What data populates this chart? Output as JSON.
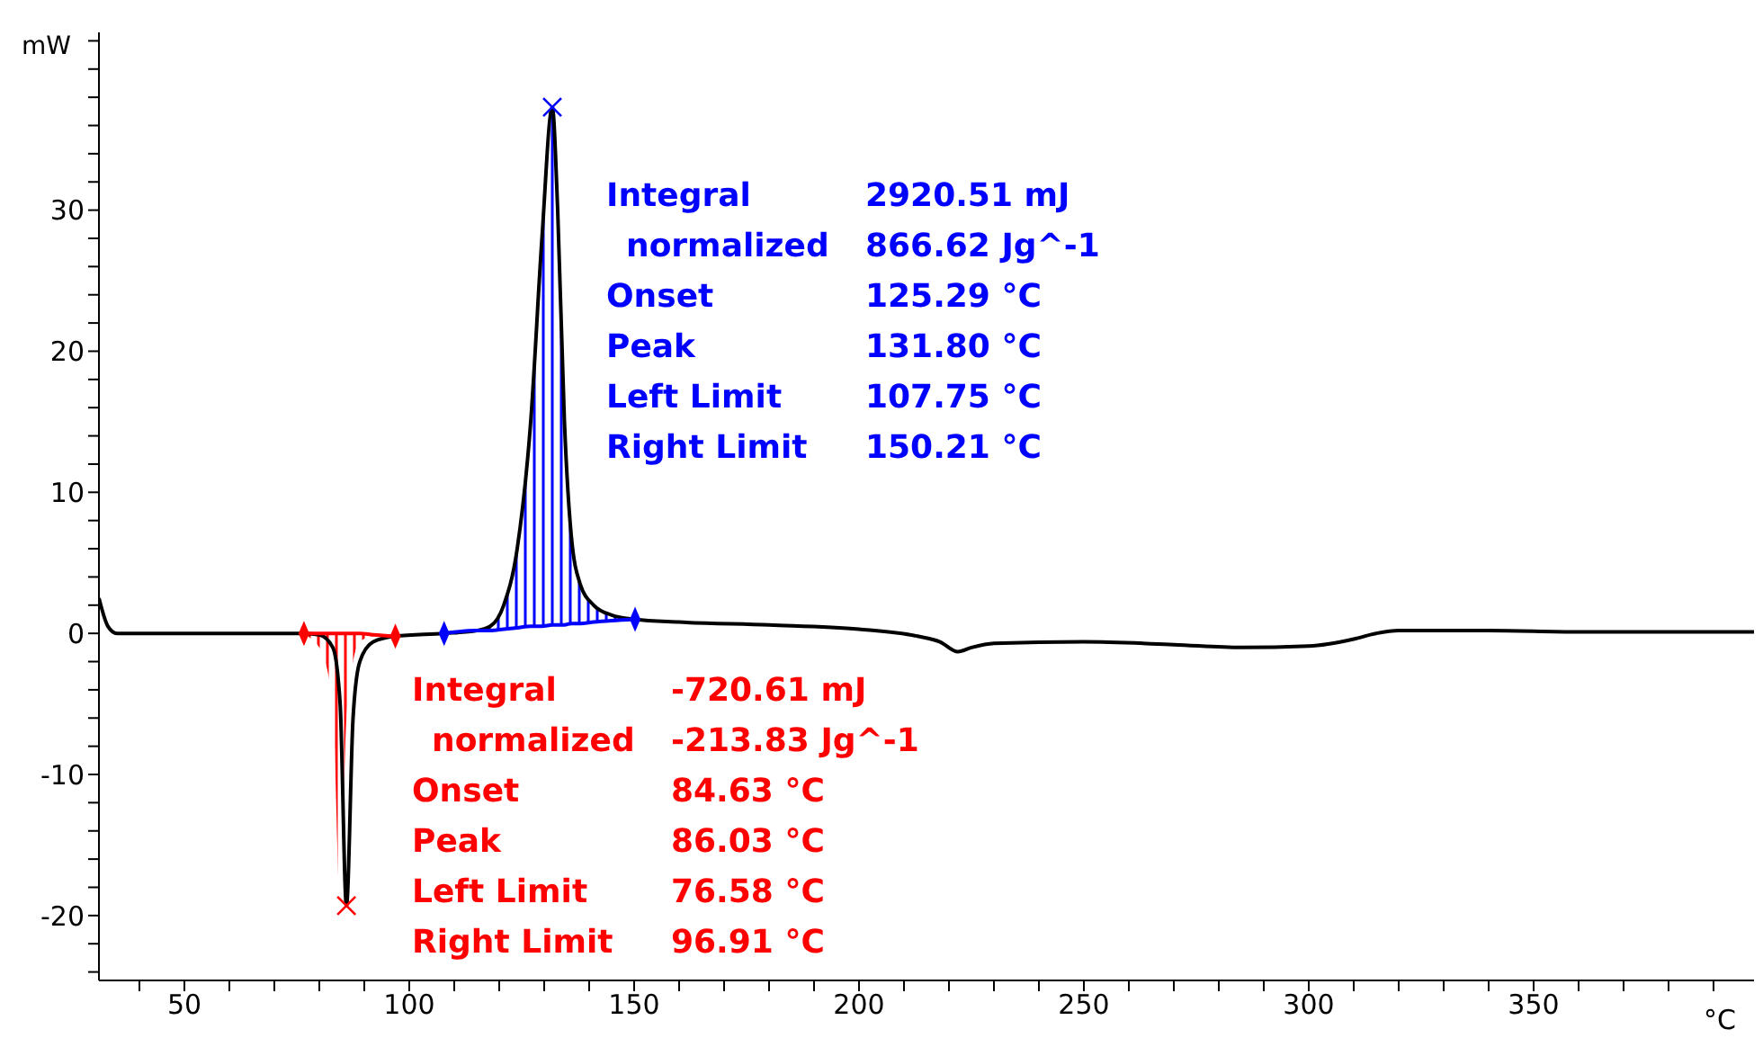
{
  "chart_data": {
    "type": "line",
    "ylabel": "mW",
    "xlabel": "°C",
    "xlim": [
      31,
      399
    ],
    "ylim": [
      -24.6,
      42.6
    ],
    "xticks": [
      {
        "value": 40,
        "label": null
      },
      50,
      {
        "value": 60,
        "label": null
      },
      {
        "value": 70,
        "label": null
      },
      {
        "value": 80,
        "label": null
      },
      {
        "value": 90,
        "label": null
      },
      100,
      {
        "value": 110,
        "label": null
      },
      {
        "value": 120,
        "label": null
      },
      {
        "value": 130,
        "label": null
      },
      {
        "value": 140,
        "label": null
      },
      150,
      {
        "value": 160,
        "label": null
      },
      {
        "value": 170,
        "label": null
      },
      {
        "value": 180,
        "label": null
      },
      {
        "value": 190,
        "label": null
      },
      200,
      {
        "value": 210,
        "label": null
      },
      {
        "value": 220,
        "label": null
      },
      {
        "value": 230,
        "label": null
      },
      {
        "value": 240,
        "label": null
      },
      250,
      {
        "value": 260,
        "label": null
      },
      {
        "value": 270,
        "label": null
      },
      {
        "value": 280,
        "label": null
      },
      {
        "value": 290,
        "label": null
      },
      300,
      {
        "value": 310,
        "label": null
      },
      {
        "value": 320,
        "label": null
      },
      {
        "value": 330,
        "label": null
      },
      {
        "value": 340,
        "label": null
      },
      350,
      {
        "value": 360,
        "label": null
      },
      {
        "value": 370,
        "label": null
      },
      {
        "value": 380,
        "label": null
      },
      {
        "value": 390,
        "label": null
      }
    ],
    "yticks": [
      {
        "value": -24,
        "label": null
      },
      {
        "value": -22,
        "label": null
      },
      -20,
      {
        "value": -18,
        "label": null
      },
      {
        "value": -16,
        "label": null
      },
      {
        "value": -14,
        "label": null
      },
      {
        "value": -12,
        "label": null
      },
      -10,
      {
        "value": -8,
        "label": null
      },
      {
        "value": -6,
        "label": null
      },
      {
        "value": -4,
        "label": null
      },
      {
        "value": -2,
        "label": null
      },
      0,
      {
        "value": 2,
        "label": null
      },
      {
        "value": 4,
        "label": null
      },
      {
        "value": 6,
        "label": null
      },
      {
        "value": 8,
        "label": null
      },
      10,
      {
        "value": 12,
        "label": null
      },
      {
        "value": 14,
        "label": null
      },
      {
        "value": 16,
        "label": null
      },
      {
        "value": 18,
        "label": null
      },
      20,
      {
        "value": 22,
        "label": null
      },
      {
        "value": 24,
        "label": null
      },
      {
        "value": 26,
        "label": null
      },
      {
        "value": 28,
        "label": null
      },
      30,
      {
        "value": 32,
        "label": null
      },
      {
        "value": 34,
        "label": null
      },
      {
        "value": 36,
        "label": null
      },
      {
        "value": 38,
        "label": null
      },
      {
        "value": 40,
        "label": null
      },
      {
        "value": 42,
        "label": null
      }
    ],
    "series": [
      {
        "color": "#000000",
        "x": [
          31,
          33,
          35,
          50,
          76.58,
          80,
          83,
          84.63,
          86.03,
          87.5,
          89,
          92,
          96.91,
          107.75,
          115,
          118,
          121,
          124,
          127,
          129.5,
          131.8,
          133,
          134.5,
          136,
          138,
          141,
          145,
          150.21,
          160,
          180,
          200,
          213,
          218,
          222,
          225,
          230,
          250,
          270,
          285,
          300,
          310,
          315,
          320,
          340,
          360,
          399
        ],
        "values": [
          2.5,
          0.5,
          0,
          0,
          0,
          -0.1,
          -1,
          -5,
          -19.3,
          -6,
          -2,
          -0.6,
          -0.2,
          0,
          0.2,
          0.5,
          2,
          6,
          15,
          28,
          37.3,
          30,
          15,
          7,
          3.5,
          2,
          1.3,
          1,
          0.8,
          0.6,
          0.3,
          -0.2,
          -0.6,
          -1.3,
          -1,
          -0.7,
          -0.6,
          -0.8,
          -1,
          -0.9,
          -0.4,
          0,
          0.2,
          0.2,
          0.1,
          0.1
        ]
      },
      {
        "color": "#0000ff",
        "x": [
          107.75,
          115,
          118,
          121,
          124,
          127,
          129.5,
          131.8,
          133,
          134.5,
          136,
          138,
          141,
          145,
          150.21
        ],
        "values": [
          0,
          0.2,
          0.2,
          0.3,
          0.4,
          0.5,
          0.5,
          0.6,
          0.6,
          0.6,
          0.7,
          0.7,
          0.8,
          0.9,
          1
        ],
        "lower": [
          0,
          0.2,
          0.2,
          0.3,
          0.4,
          0.5,
          0.5,
          0.6,
          0.6,
          0.6,
          0.7,
          0.7,
          0.8,
          0.9,
          1
        ],
        "upper": [
          0,
          0.2,
          0.5,
          2,
          6,
          15,
          28,
          37.3,
          30,
          15,
          7,
          3.5,
          2,
          1.3,
          1
        ]
      },
      {
        "color": "#ff0000",
        "x": [
          76.58,
          80,
          83,
          84.63,
          86.03,
          87.5,
          89,
          92,
          96.91
        ],
        "values": [
          0,
          0,
          0,
          0,
          0,
          0,
          0,
          -0.1,
          -0.2
        ],
        "lower": [
          -0.1,
          -1,
          -5,
          -19.3,
          -6,
          -2,
          -0.6,
          -0.2,
          -0.2
        ],
        "upper": [
          0,
          0,
          0,
          0,
          0,
          0,
          0,
          -0.1,
          -0.2
        ]
      },
      {
        "type": "scatter",
        "color": "#ff0000",
        "marker": "cross",
        "x": [
          86.03
        ],
        "values": [
          -19.3
        ]
      },
      {
        "type": "scatter",
        "color": "#0000ff",
        "marker": "cross",
        "x": [
          131.8
        ],
        "values": [
          37.3
        ]
      },
      {
        "type": "scatter",
        "color": "#ff0000",
        "marker": "diamond",
        "x": [
          76.58,
          96.91
        ],
        "values": [
          0,
          -0.2
        ]
      },
      {
        "type": "scatter",
        "color": "#0000ff",
        "marker": "diamond",
        "x": [
          107.75,
          150.21
        ],
        "values": [
          0,
          1
        ]
      }
    ],
    "annotations": [
      "Integral",
      "2920.51 mJ",
      "normalized",
      "866.62 Jg^-1",
      "Onset",
      "125.29 °C",
      "Peak",
      "131.80 °C",
      "Left Limit",
      "107.75 °C",
      "Right Limit",
      "150.21 °C",
      "Integral",
      "-720.61 mJ",
      "normalized",
      "-213.83 Jg^-1",
      "Onset",
      "84.63 °C",
      "Peak",
      "86.03 °C",
      "Left Limit",
      "76.58 °C",
      "Right Limit",
      "96.91 °C"
    ]
  }
}
